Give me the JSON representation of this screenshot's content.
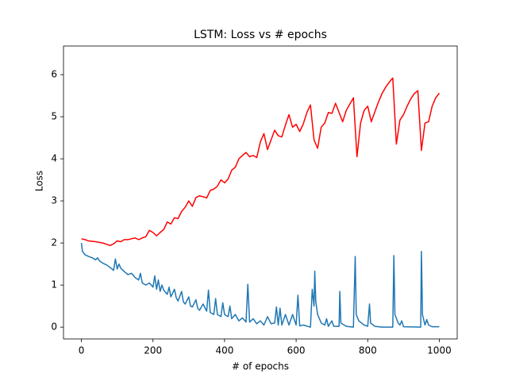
{
  "chart_data": {
    "type": "line",
    "title": "LSTM: Loss vs # epochs",
    "x_label": "# of epochs",
    "y_label": "Loss",
    "xlim": [
      -50,
      1050
    ],
    "ylim": [
      -0.28,
      6.68
    ],
    "xticks": [
      0,
      200,
      400,
      600,
      800,
      1000
    ],
    "yticks": [
      0,
      1,
      2,
      3,
      4,
      5,
      6
    ],
    "grid": false,
    "series": [
      {
        "color": "#ff0000",
        "x": [
          0,
          10,
          20,
          40,
          60,
          70,
          80,
          90,
          100,
          110,
          120,
          130,
          140,
          150,
          160,
          170,
          180,
          190,
          200,
          210,
          220,
          230,
          240,
          250,
          260,
          270,
          280,
          290,
          300,
          310,
          320,
          330,
          340,
          350,
          360,
          370,
          380,
          390,
          400,
          410,
          420,
          430,
          440,
          450,
          460,
          470,
          480,
          490,
          500,
          510,
          520,
          530,
          540,
          550,
          560,
          570,
          580,
          590,
          600,
          610,
          620,
          630,
          640,
          650,
          660,
          670,
          680,
          690,
          700,
          710,
          720,
          730,
          740,
          750,
          760,
          770,
          780,
          790,
          800,
          810,
          820,
          830,
          840,
          850,
          860,
          870,
          880,
          890,
          900,
          910,
          920,
          930,
          940,
          950,
          960,
          970,
          980,
          990,
          1000
        ],
        "values": [
          2.1,
          2.08,
          2.05,
          2.03,
          2.0,
          1.97,
          1.94,
          1.98,
          2.05,
          2.03,
          2.08,
          2.08,
          2.1,
          2.12,
          2.08,
          2.12,
          2.15,
          2.3,
          2.25,
          2.17,
          2.25,
          2.32,
          2.5,
          2.45,
          2.6,
          2.58,
          2.75,
          2.85,
          3.0,
          2.87,
          3.08,
          3.12,
          3.1,
          3.07,
          3.25,
          3.28,
          3.35,
          3.5,
          3.43,
          3.52,
          3.73,
          3.8,
          4.0,
          4.08,
          4.15,
          4.05,
          4.08,
          4.03,
          4.4,
          4.6,
          4.22,
          4.45,
          4.68,
          4.55,
          4.52,
          4.8,
          5.05,
          4.75,
          4.82,
          4.65,
          4.83,
          5.1,
          5.28,
          4.45,
          4.25,
          4.75,
          4.85,
          5.1,
          5.08,
          5.32,
          5.1,
          4.88,
          5.15,
          5.3,
          5.45,
          4.05,
          4.85,
          5.15,
          5.25,
          4.88,
          5.12,
          5.35,
          5.55,
          5.7,
          5.82,
          5.92,
          4.35,
          4.92,
          5.05,
          5.25,
          5.42,
          5.55,
          5.62,
          4.2,
          4.85,
          4.88,
          5.25,
          5.45,
          5.56
        ]
      },
      {
        "color": "#1f77b4",
        "x": [
          0,
          3,
          10,
          20,
          30,
          40,
          45,
          50,
          60,
          70,
          80,
          90,
          95,
          100,
          105,
          110,
          120,
          130,
          140,
          150,
          160,
          165,
          170,
          180,
          190,
          200,
          205,
          210,
          215,
          220,
          225,
          230,
          240,
          245,
          250,
          260,
          265,
          270,
          280,
          285,
          290,
          300,
          305,
          310,
          320,
          325,
          330,
          340,
          350,
          355,
          360,
          370,
          375,
          380,
          390,
          395,
          400,
          410,
          415,
          420,
          430,
          440,
          450,
          460,
          465,
          470,
          480,
          490,
          500,
          510,
          520,
          530,
          540,
          545,
          550,
          555,
          560,
          570,
          580,
          590,
          600,
          605,
          610,
          620,
          640,
          645,
          650,
          652,
          655,
          660,
          670,
          680,
          685,
          690,
          700,
          705,
          720,
          722,
          725,
          740,
          760,
          765,
          768,
          775,
          790,
          800,
          805,
          808,
          820,
          840,
          870,
          873,
          876,
          885,
          890,
          895,
          900,
          948,
          950,
          953,
          960,
          965,
          970,
          980,
          1000
        ],
        "values": [
          2.0,
          1.8,
          1.72,
          1.68,
          1.65,
          1.6,
          1.65,
          1.58,
          1.52,
          1.48,
          1.42,
          1.35,
          1.62,
          1.38,
          1.5,
          1.4,
          1.32,
          1.25,
          1.28,
          1.18,
          1.12,
          1.28,
          1.05,
          1.0,
          1.05,
          0.95,
          1.22,
          0.9,
          1.12,
          0.85,
          1.0,
          0.88,
          0.78,
          0.95,
          0.72,
          0.9,
          0.7,
          0.62,
          0.85,
          0.6,
          0.55,
          0.72,
          0.5,
          0.48,
          0.65,
          0.45,
          0.4,
          0.55,
          0.38,
          0.88,
          0.35,
          0.3,
          0.68,
          0.3,
          0.25,
          0.58,
          0.3,
          0.25,
          0.5,
          0.2,
          0.3,
          0.15,
          0.22,
          0.12,
          1.02,
          0.12,
          0.2,
          0.08,
          0.15,
          0.05,
          0.25,
          0.08,
          0.1,
          0.48,
          0.05,
          0.45,
          0.05,
          0.3,
          0.05,
          0.3,
          0.05,
          0.76,
          0.03,
          0.05,
          0.0,
          0.9,
          0.5,
          1.33,
          0.6,
          0.3,
          0.1,
          0.05,
          0.2,
          0.02,
          0.15,
          0.02,
          0.02,
          0.85,
          0.1,
          0.02,
          0.0,
          1.68,
          0.3,
          0.15,
          0.05,
          0.02,
          0.55,
          0.1,
          0.02,
          0.0,
          0.0,
          1.7,
          0.3,
          0.1,
          0.05,
          0.15,
          0.01,
          0.0,
          1.8,
          0.3,
          0.05,
          0.18,
          0.05,
          0.01,
          0.01
        ]
      }
    ]
  }
}
